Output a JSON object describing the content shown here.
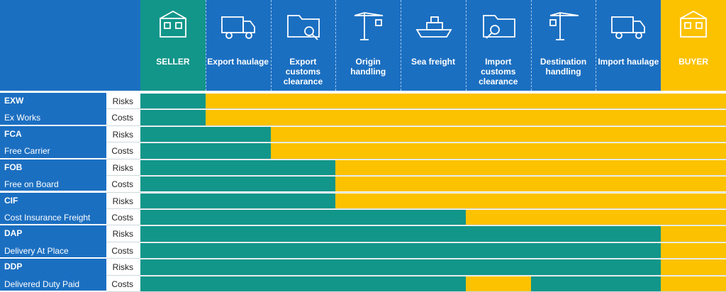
{
  "header": {
    "columns": [
      "SELLER",
      "Export haulage",
      "Export customs clearance",
      "Origin handling",
      "Sea freight",
      "Import customs clearance",
      "Destination handling",
      "Import haulage",
      "BUYER"
    ]
  },
  "rows": [
    {
      "code": "EXW",
      "name": "Ex Works",
      "risks": {
        "label": "Risks",
        "seller_spans": [
          [
            0,
            1
          ]
        ]
      },
      "costs": {
        "label": "Costs",
        "seller_spans": [
          [
            0,
            1
          ]
        ]
      }
    },
    {
      "code": "FCA",
      "name": "Free Carrier",
      "risks": {
        "label": "Risks",
        "seller_spans": [
          [
            0,
            2
          ]
        ]
      },
      "costs": {
        "label": "Costs",
        "seller_spans": [
          [
            0,
            2
          ]
        ]
      }
    },
    {
      "code": "FOB",
      "name": "Free on Board",
      "risks": {
        "label": "Risks",
        "seller_spans": [
          [
            0,
            3
          ]
        ]
      },
      "costs": {
        "label": "Costs",
        "seller_spans": [
          [
            0,
            3
          ]
        ]
      }
    },
    {
      "code": "CIF",
      "name": "Cost Insurance Freight",
      "risks": {
        "label": "Risks",
        "seller_spans": [
          [
            0,
            3
          ]
        ]
      },
      "costs": {
        "label": "Costs",
        "seller_spans": [
          [
            0,
            5
          ]
        ]
      }
    },
    {
      "code": "DAP",
      "name": "Delivery At Place",
      "risks": {
        "label": "Risks",
        "seller_spans": [
          [
            0,
            8
          ]
        ]
      },
      "costs": {
        "label": "Costs",
        "seller_spans": [
          [
            0,
            8
          ]
        ]
      }
    },
    {
      "code": "DDP",
      "name": "Delivered Duty Paid",
      "risks": {
        "label": "Risks",
        "seller_spans": [
          [
            0,
            8
          ]
        ]
      },
      "costs": {
        "label": "Costs",
        "seller_spans": [
          [
            0,
            5
          ],
          [
            6,
            8
          ]
        ]
      }
    }
  ]
}
